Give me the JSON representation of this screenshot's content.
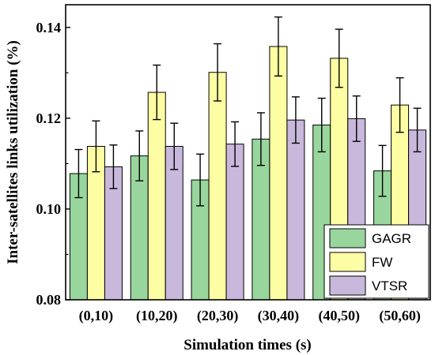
{
  "chart_data": {
    "type": "bar",
    "title": "",
    "xlabel": "Simulation times (s)",
    "ylabel": "Inter-satellites links utilization (%)",
    "categories": [
      "(0,10)",
      "(10,20)",
      "(20,30)",
      "(30,40)",
      "(40,50)",
      "(50,60)"
    ],
    "ylim": [
      0.08,
      0.145
    ],
    "yticks": [
      "0.08",
      "0.10",
      "0.12",
      "0.14"
    ],
    "series": [
      {
        "name": "GAGR",
        "color": "#98d69d",
        "values": [
          0.1078,
          0.1117,
          0.1064,
          0.1154,
          0.1185,
          0.1084
        ],
        "error": [
          0.0053,
          0.0055,
          0.0057,
          0.0058,
          0.0059,
          0.0056
        ]
      },
      {
        "name": "FW",
        "color": "#fdfda3",
        "values": [
          0.1138,
          0.1257,
          0.1301,
          0.1358,
          0.1332,
          0.1229
        ],
        "error": [
          0.0056,
          0.006,
          0.0063,
          0.0065,
          0.0064,
          0.006
        ]
      },
      {
        "name": "VTSR",
        "color": "#c8b8dc",
        "values": [
          0.1093,
          0.1138,
          0.1143,
          0.1196,
          0.1199,
          0.1174
        ],
        "error": [
          0.0048,
          0.0051,
          0.0049,
          0.0051,
          0.005,
          0.0048
        ]
      }
    ],
    "legend_position": "bottom-right",
    "grid": false
  }
}
